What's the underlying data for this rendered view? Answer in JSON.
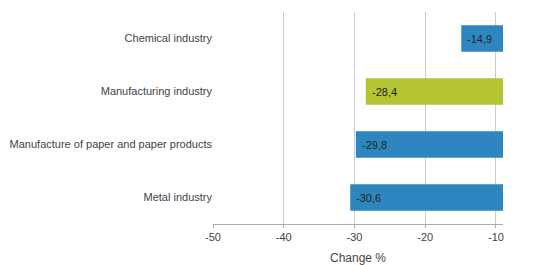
{
  "chart_data": {
    "type": "bar",
    "orientation": "horizontal",
    "categories": [
      "Metal industry",
      "Manufacture of paper and paper products",
      "Manufacturing industry",
      "Chemical industry"
    ],
    "values": [
      -30.6,
      -29.8,
      -28.4,
      -14.9
    ],
    "value_labels": [
      "-30,6",
      "-29,8",
      "-28,4",
      "-14,9"
    ],
    "data_labels": true,
    "colors": [
      "#2e86c0",
      "#2e86c0",
      "#b5c433",
      "#2e86c0"
    ],
    "xlabel": "Change %",
    "xlim": [
      -50,
      -9
    ],
    "xticks": [
      -50,
      -40,
      -30,
      -20,
      -10
    ],
    "grid": true
  }
}
